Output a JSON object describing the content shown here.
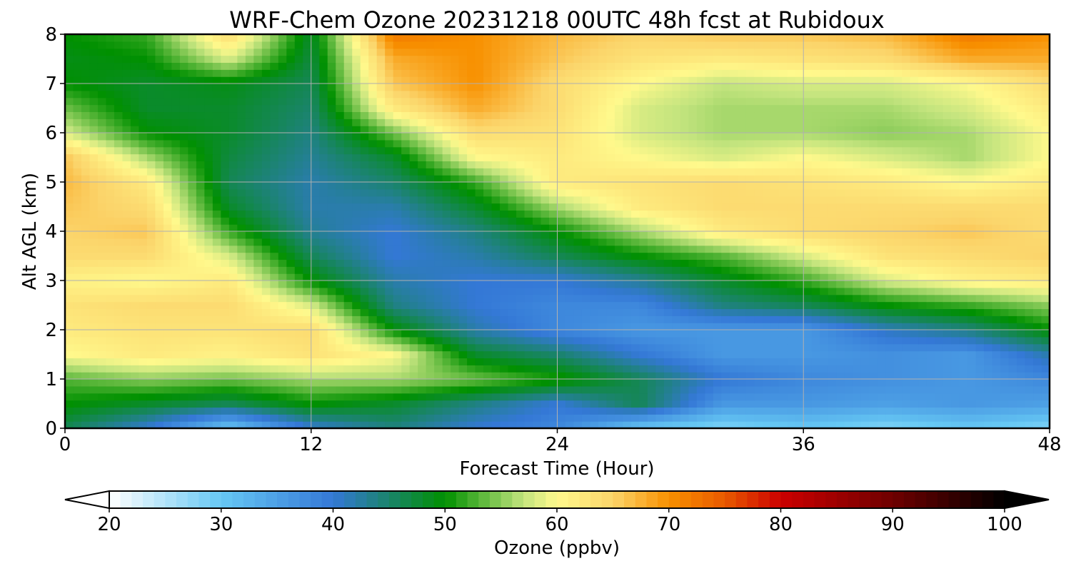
{
  "chart_data": {
    "type": "heatmap",
    "title": "WRF-Chem Ozone  20231218 00UTC 48h fcst at Rubidoux",
    "xlabel": "Forecast Time (Hour)",
    "ylabel": "Alt AGL (km)",
    "xlim": [
      0,
      48
    ],
    "ylim": [
      0,
      8
    ],
    "x_ticks": [
      "0",
      "12",
      "24",
      "36",
      "48"
    ],
    "y_ticks": [
      "0",
      "1",
      "2",
      "3",
      "4",
      "5",
      "6",
      "7",
      "8"
    ],
    "grid": true,
    "x": [
      0,
      4,
      8,
      12,
      16,
      20,
      24,
      28,
      32,
      36,
      40,
      44,
      48
    ],
    "y": [
      0,
      0.5,
      1,
      1.5,
      2,
      2.5,
      3,
      3.5,
      4,
      4.5,
      5,
      5.5,
      6,
      6.5,
      7,
      7.5,
      8
    ],
    "z": [
      [
        46,
        40,
        30,
        40,
        44,
        40,
        38,
        30,
        28,
        30,
        28,
        30,
        28
      ],
      [
        50,
        48,
        46,
        50,
        48,
        44,
        40,
        46,
        36,
        36,
        35,
        36,
        35
      ],
      [
        53,
        55,
        54,
        56,
        56,
        54,
        51,
        46,
        40,
        38,
        37,
        36,
        38
      ],
      [
        60,
        62,
        61,
        63,
        60,
        48,
        45,
        40,
        36,
        36,
        37,
        36,
        42
      ],
      [
        62,
        63,
        63,
        64,
        50,
        42,
        38,
        36,
        36,
        36,
        41,
        44,
        50
      ],
      [
        63,
        64,
        64,
        58,
        44,
        40,
        38,
        38,
        44,
        46,
        50,
        52,
        55
      ],
      [
        61,
        60,
        62,
        50,
        42,
        40,
        40,
        43,
        48,
        52,
        58,
        61,
        62
      ],
      [
        64,
        64,
        58,
        46,
        40,
        42,
        46,
        50,
        53,
        58,
        63,
        64,
        65
      ],
      [
        65,
        66,
        52,
        43,
        40,
        44,
        50,
        56,
        62,
        64,
        65,
        66,
        64
      ],
      [
        66,
        64,
        48,
        42,
        42,
        48,
        56,
        62,
        64,
        64,
        64,
        64,
        64
      ],
      [
        67,
        62,
        46,
        42,
        45,
        52,
        62,
        63,
        64,
        63,
        62,
        60,
        62
      ],
      [
        66,
        56,
        47,
        43,
        48,
        60,
        62,
        60,
        58,
        60,
        58,
        56,
        60
      ],
      [
        58,
        50,
        48,
        44,
        54,
        64,
        63,
        58,
        56,
        56,
        55,
        56,
        60
      ],
      [
        54,
        48,
        48,
        45,
        62,
        68,
        64,
        58,
        56,
        56,
        56,
        58,
        62
      ],
      [
        50,
        48,
        49,
        46,
        66,
        70,
        64,
        60,
        57,
        58,
        58,
        60,
        64
      ],
      [
        49,
        50,
        58,
        47,
        68,
        70,
        66,
        63,
        62,
        63,
        64,
        68,
        68
      ],
      [
        50,
        52,
        64,
        48,
        72,
        70,
        67,
        65,
        66,
        66,
        67,
        72,
        70
      ]
    ],
    "colorbar": {
      "label": "Ozone  (ppbv)",
      "min": 20,
      "max": 100,
      "ticks": [
        "20",
        "30",
        "40",
        "50",
        "60",
        "70",
        "80",
        "90",
        "100"
      ],
      "extend": "both",
      "colors": {
        "20": "#ffffff",
        "30": "#66c8f4",
        "40": "#3478d6",
        "50": "#009000",
        "57": "#c3e47e",
        "60": "#fff98c",
        "65": "#fbd46a",
        "70": "#f89000",
        "75": "#e85a00",
        "80": "#cc0000",
        "90": "#6e0000",
        "100": "#000000"
      }
    }
  }
}
